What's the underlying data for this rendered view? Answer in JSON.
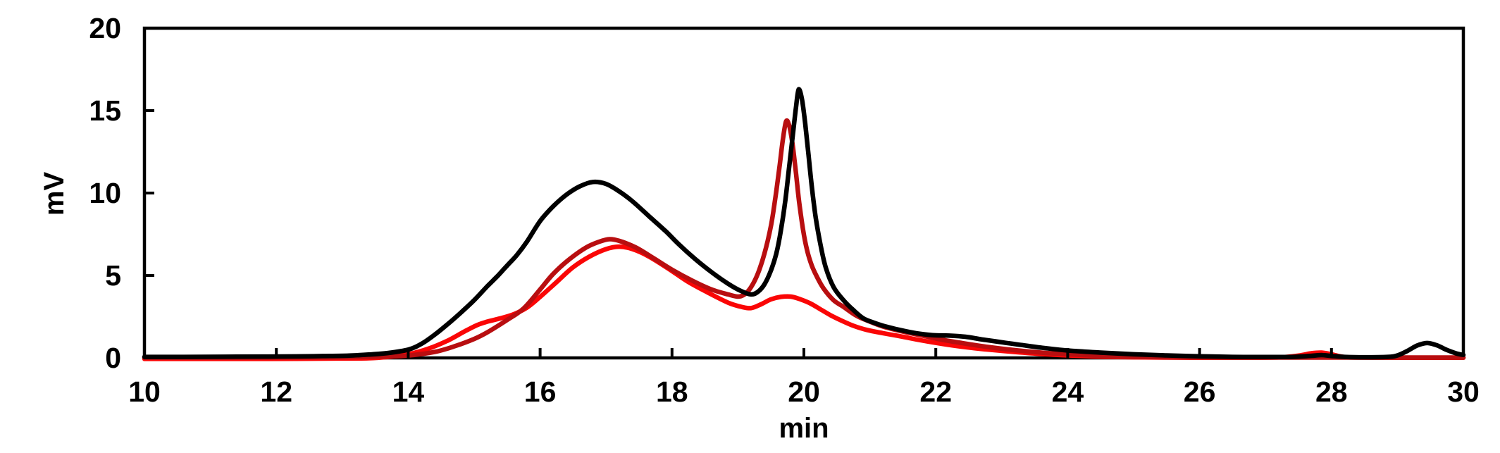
{
  "figure": {
    "background": "#ffffff",
    "axis_color": "#000000",
    "text_color": "#000000"
  },
  "chart_data": {
    "type": "line",
    "title": "",
    "xlabel": "min",
    "ylabel": "mV",
    "xlim": [
      10,
      30
    ],
    "ylim": [
      0,
      20
    ],
    "x_ticks": [
      10,
      12,
      14,
      16,
      18,
      20,
      22,
      24,
      26,
      28,
      30
    ],
    "y_ticks": [
      0,
      5,
      10,
      15,
      20
    ],
    "grid": false,
    "legend": "none",
    "plot_border": "box",
    "series": [
      {
        "name": "bright-red",
        "color": "#fa0606",
        "description": "bright red trace; broad peak 6.75 mV at 17.2 min, low hump 3.7 mV near 19.8 min, small blip at 27.85 min",
        "points": [
          [
            10,
            -0.06
          ],
          [
            10.8,
            -0.06
          ],
          [
            11.6,
            -0.06
          ],
          [
            12.3,
            -0.05
          ],
          [
            12.9,
            -0.04
          ],
          [
            13.4,
            -0.02
          ],
          [
            13.7,
            0.06
          ],
          [
            14,
            0.22
          ],
          [
            14.3,
            0.55
          ],
          [
            14.6,
            1.05
          ],
          [
            14.85,
            1.6
          ],
          [
            15.05,
            2
          ],
          [
            15.2,
            2.2
          ],
          [
            15.4,
            2.4
          ],
          [
            15.6,
            2.65
          ],
          [
            15.8,
            3.05
          ],
          [
            16,
            3.7
          ],
          [
            16.25,
            4.6
          ],
          [
            16.5,
            5.5
          ],
          [
            16.75,
            6.15
          ],
          [
            17,
            6.6
          ],
          [
            17.2,
            6.75
          ],
          [
            17.4,
            6.6
          ],
          [
            17.65,
            6.15
          ],
          [
            17.95,
            5.4
          ],
          [
            18.25,
            4.6
          ],
          [
            18.55,
            3.95
          ],
          [
            18.85,
            3.35
          ],
          [
            19.05,
            3.1
          ],
          [
            19.2,
            3.02
          ],
          [
            19.35,
            3.25
          ],
          [
            19.5,
            3.55
          ],
          [
            19.65,
            3.7
          ],
          [
            19.8,
            3.72
          ],
          [
            19.95,
            3.55
          ],
          [
            20.1,
            3.3
          ],
          [
            20.25,
            2.95
          ],
          [
            20.4,
            2.6
          ],
          [
            20.55,
            2.3
          ],
          [
            20.75,
            1.95
          ],
          [
            20.95,
            1.7
          ],
          [
            21.2,
            1.5
          ],
          [
            21.5,
            1.28
          ],
          [
            21.8,
            1.05
          ],
          [
            22.1,
            0.85
          ],
          [
            22.4,
            0.68
          ],
          [
            22.8,
            0.5
          ],
          [
            23.2,
            0.36
          ],
          [
            23.6,
            0.24
          ],
          [
            24,
            0.15
          ],
          [
            24.5,
            0.08
          ],
          [
            25,
            0.04
          ],
          [
            25.5,
            0.02
          ],
          [
            26.1,
            0.01
          ],
          [
            26.7,
            0.01
          ],
          [
            27.2,
            0.03
          ],
          [
            27.5,
            0.14
          ],
          [
            27.7,
            0.28
          ],
          [
            27.85,
            0.32
          ],
          [
            28,
            0.22
          ],
          [
            28.15,
            0.08
          ],
          [
            28.35,
            0.02
          ],
          [
            29.2,
            0.01
          ],
          [
            30,
            0.01
          ]
        ]
      },
      {
        "name": "dark-red",
        "color": "#b80e10",
        "description": "dark red trace; broad peak 7.2 mV at 17.05 min, sharp peak 14.35 mV at 19.73 min",
        "points": [
          [
            10,
            0.02
          ],
          [
            11,
            0.02
          ],
          [
            12,
            0.03
          ],
          [
            12.8,
            0.04
          ],
          [
            13.3,
            0.06
          ],
          [
            13.7,
            0.09
          ],
          [
            14,
            0.14
          ],
          [
            14.4,
            0.36
          ],
          [
            14.7,
            0.7
          ],
          [
            15,
            1.15
          ],
          [
            15.2,
            1.55
          ],
          [
            15.5,
            2.3
          ],
          [
            15.75,
            3
          ],
          [
            16,
            4.15
          ],
          [
            16.2,
            5.1
          ],
          [
            16.45,
            6
          ],
          [
            16.7,
            6.7
          ],
          [
            16.9,
            7.05
          ],
          [
            17.05,
            7.2
          ],
          [
            17.2,
            7.1
          ],
          [
            17.45,
            6.7
          ],
          [
            17.7,
            6.1
          ],
          [
            18,
            5.35
          ],
          [
            18.3,
            4.7
          ],
          [
            18.6,
            4.15
          ],
          [
            18.85,
            3.85
          ],
          [
            19,
            3.72
          ],
          [
            19.1,
            3.85
          ],
          [
            19.2,
            4.3
          ],
          [
            19.3,
            5.1
          ],
          [
            19.4,
            6.3
          ],
          [
            19.5,
            8
          ],
          [
            19.57,
            9.8
          ],
          [
            19.63,
            11.6
          ],
          [
            19.68,
            13.2
          ],
          [
            19.73,
            14.35
          ],
          [
            19.78,
            14.05
          ],
          [
            19.83,
            12.9
          ],
          [
            19.88,
            11.2
          ],
          [
            19.93,
            9.4
          ],
          [
            19.99,
            7.7
          ],
          [
            20.05,
            6.5
          ],
          [
            20.12,
            5.6
          ],
          [
            20.2,
            4.9
          ],
          [
            20.3,
            4.2
          ],
          [
            20.45,
            3.5
          ],
          [
            20.6,
            3.1
          ],
          [
            20.8,
            2.55
          ],
          [
            21,
            2.2
          ],
          [
            21.2,
            1.9
          ],
          [
            21.5,
            1.6
          ],
          [
            21.8,
            1.35
          ],
          [
            22.1,
            1.1
          ],
          [
            22.4,
            0.9
          ],
          [
            22.8,
            0.66
          ],
          [
            23.2,
            0.47
          ],
          [
            23.6,
            0.32
          ],
          [
            24,
            0.22
          ],
          [
            24.5,
            0.13
          ],
          [
            25,
            0.07
          ],
          [
            25.5,
            0.04
          ],
          [
            26,
            0.03
          ],
          [
            26.8,
            0.02
          ],
          [
            27.6,
            0.02
          ],
          [
            28.4,
            0.02
          ],
          [
            29.2,
            0.02
          ],
          [
            30,
            0.02
          ]
        ]
      },
      {
        "name": "black",
        "color": "#000000",
        "description": "black trace; broad peak 10.67 mV at 16.8 min, sharp peak 16.3 mV at 19.92 min, small bump 0.9 mV at 29.45 min",
        "points": [
          [
            10,
            0.06
          ],
          [
            10.6,
            0.06
          ],
          [
            11.2,
            0.07
          ],
          [
            11.8,
            0.08
          ],
          [
            12.3,
            0.09
          ],
          [
            12.7,
            0.11
          ],
          [
            13.1,
            0.14
          ],
          [
            13.4,
            0.2
          ],
          [
            13.7,
            0.3
          ],
          [
            14,
            0.5
          ],
          [
            14.2,
            0.85
          ],
          [
            14.4,
            1.4
          ],
          [
            14.6,
            2.05
          ],
          [
            14.8,
            2.75
          ],
          [
            15,
            3.5
          ],
          [
            15.2,
            4.35
          ],
          [
            15.35,
            4.95
          ],
          [
            15.5,
            5.6
          ],
          [
            15.65,
            6.25
          ],
          [
            15.8,
            7.05
          ],
          [
            16,
            8.3
          ],
          [
            16.2,
            9.2
          ],
          [
            16.4,
            9.9
          ],
          [
            16.6,
            10.4
          ],
          [
            16.8,
            10.67
          ],
          [
            17,
            10.55
          ],
          [
            17.2,
            10.1
          ],
          [
            17.4,
            9.5
          ],
          [
            17.65,
            8.6
          ],
          [
            17.9,
            7.7
          ],
          [
            18.1,
            6.9
          ],
          [
            18.35,
            6
          ],
          [
            18.6,
            5.2
          ],
          [
            18.85,
            4.5
          ],
          [
            19.05,
            4.05
          ],
          [
            19.2,
            3.85
          ],
          [
            19.3,
            4
          ],
          [
            19.4,
            4.45
          ],
          [
            19.5,
            5.3
          ],
          [
            19.58,
            6.3
          ],
          [
            19.65,
            7.7
          ],
          [
            19.72,
            9.6
          ],
          [
            19.78,
            11.7
          ],
          [
            19.84,
            13.8
          ],
          [
            19.88,
            15.2
          ],
          [
            19.92,
            16.28
          ],
          [
            19.97,
            15.7
          ],
          [
            20.02,
            14.2
          ],
          [
            20.07,
            12.3
          ],
          [
            20.12,
            10.4
          ],
          [
            20.18,
            8.5
          ],
          [
            20.25,
            6.9
          ],
          [
            20.33,
            5.5
          ],
          [
            20.45,
            4.3
          ],
          [
            20.6,
            3.5
          ],
          [
            20.75,
            2.9
          ],
          [
            20.9,
            2.4
          ],
          [
            21.05,
            2.15
          ],
          [
            21.2,
            1.95
          ],
          [
            21.45,
            1.7
          ],
          [
            21.7,
            1.5
          ],
          [
            21.95,
            1.38
          ],
          [
            22.2,
            1.35
          ],
          [
            22.45,
            1.28
          ],
          [
            22.7,
            1.12
          ],
          [
            23,
            0.95
          ],
          [
            23.3,
            0.78
          ],
          [
            23.6,
            0.62
          ],
          [
            24,
            0.45
          ],
          [
            24.5,
            0.32
          ],
          [
            25,
            0.22
          ],
          [
            25.5,
            0.15
          ],
          [
            26,
            0.1
          ],
          [
            26.5,
            0.06
          ],
          [
            27,
            0.05
          ],
          [
            27.4,
            0.06
          ],
          [
            27.7,
            0.13
          ],
          [
            27.85,
            0.17
          ],
          [
            28,
            0.12
          ],
          [
            28.2,
            0.06
          ],
          [
            28.5,
            0.04
          ],
          [
            28.85,
            0.06
          ],
          [
            29,
            0.15
          ],
          [
            29.15,
            0.42
          ],
          [
            29.3,
            0.75
          ],
          [
            29.45,
            0.9
          ],
          [
            29.6,
            0.76
          ],
          [
            29.75,
            0.48
          ],
          [
            29.9,
            0.26
          ],
          [
            30,
            0.18
          ]
        ]
      }
    ]
  }
}
